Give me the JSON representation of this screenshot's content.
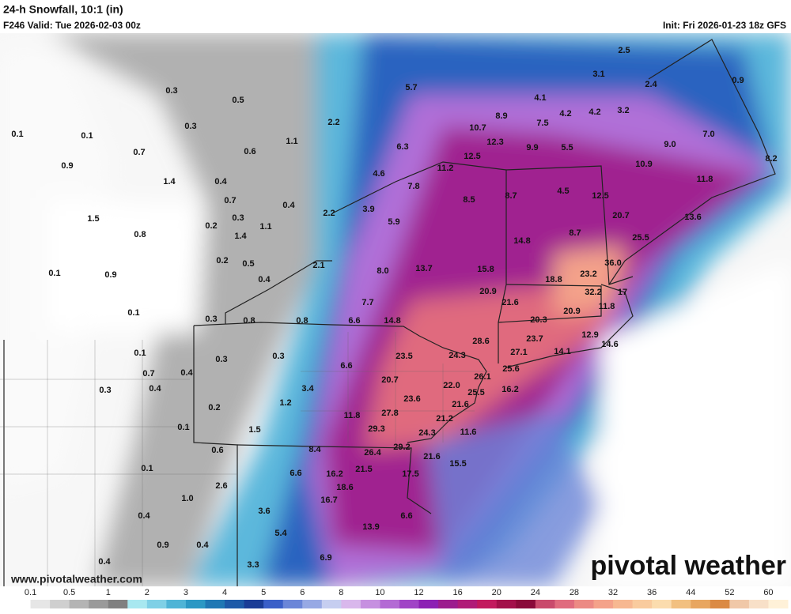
{
  "header": {
    "title": "24-h Snowfall, 10:1 (in)",
    "valid": "F246 Valid: Tue 2026-02-03 00z",
    "init": "Init: Fri 2026-01-23 18z GFS"
  },
  "map": {
    "labels": [
      "0.3",
      "0.5",
      "5.7",
      "2.5",
      "3.1",
      "2.4",
      "0.9",
      "4.1",
      "8.9",
      "4.2",
      "4.2",
      "3.2",
      "7.5",
      "0.3",
      "2.2",
      "10.7",
      "0.1",
      "0.1",
      "1.1",
      "12.3",
      "9.9",
      "5.5",
      "9.0",
      "7.0",
      "0.7",
      "0.6",
      "6.3",
      "12.5",
      "8.2",
      "0.9",
      "10.9",
      "11.2",
      "4.6",
      "1.4",
      "0.4",
      "11.8",
      "7.8",
      "8.7",
      "4.5",
      "0.7",
      "8.5",
      "12.5",
      "0.4",
      "2.2",
      "3.9",
      "20.7",
      "13.6",
      "0.3",
      "1.5",
      "0.2",
      "1.1",
      "5.9",
      "0.8",
      "1.4",
      "14.8",
      "8.7",
      "25.5",
      "0.2",
      "0.5",
      "2.1",
      "36.0",
      "13.7",
      "8.0",
      "15.8",
      "23.2",
      "0.1",
      "0.9",
      "0.4",
      "18.8",
      "20.9",
      "21.6",
      "32.2",
      "17",
      "7.7",
      "11.8",
      "0.1",
      "20.9",
      "0.3",
      "0.8",
      "0.8",
      "6.6",
      "14.8",
      "20.3",
      "28.6",
      "23.7",
      "12.9",
      "14.6",
      "27.1",
      "14.1",
      "23.5",
      "24.3",
      "0.1",
      "0.3",
      "0.3",
      "0.7",
      "0.4",
      "6.6",
      "26.1",
      "25.6",
      "20.7",
      "22.0",
      "0.4",
      "0.3",
      "3.4",
      "16.2",
      "25.5",
      "23.6",
      "1.2",
      "0.2",
      "21.6",
      "11.8",
      "27.8",
      "21.2",
      "0.1",
      "29.3",
      "1.5",
      "24.3",
      "11.6",
      "0.6",
      "8.4",
      "29.2",
      "26.4",
      "21.6",
      "15.5",
      "0.1",
      "21.5",
      "6.6",
      "16.2",
      "17.5",
      "2.6",
      "18.6",
      "1.0",
      "16.7",
      "3.6",
      "6.6",
      "0.4",
      "13.9",
      "5.4",
      "0.9",
      "0.4",
      "6.9",
      "0.4",
      "3.3"
    ],
    "website": "www.pivotalweather.com",
    "logo": "pivotal weather"
  },
  "colorbar": {
    "labels": [
      "0.1",
      "0.5",
      "1",
      "2",
      "3",
      "4",
      "5",
      "6",
      "8",
      "10",
      "12",
      "16",
      "20",
      "24",
      "28",
      "32",
      "36",
      "44",
      "52",
      "60"
    ],
    "colors": [
      "#ffffff",
      "#e6e6e6",
      "#cfcfcf",
      "#b4b4b4",
      "#9a9a9a",
      "#808080",
      "#a8e8f0",
      "#7fd0e6",
      "#4fb4d6",
      "#2b98c4",
      "#1f78b4",
      "#1d5aa8",
      "#1a3c96",
      "#3a5fc8",
      "#6b86d8",
      "#97a9e4",
      "#c6cef0",
      "#d9b8ec",
      "#c690e0",
      "#b36ad4",
      "#a044c6",
      "#8c20b4",
      "#9c1d8e",
      "#b01c78",
      "#c21a5e",
      "#a3104a",
      "#8a0a3a",
      "#c94a6c",
      "#e06b7e",
      "#ec8a84",
      "#f4a28a",
      "#f7b891",
      "#f9cb9e",
      "#fbdcae",
      "#f2c080",
      "#e8a660",
      "#db8a44",
      "#f0c8a8",
      "#f8e0c8",
      "#fff1d8"
    ]
  }
}
